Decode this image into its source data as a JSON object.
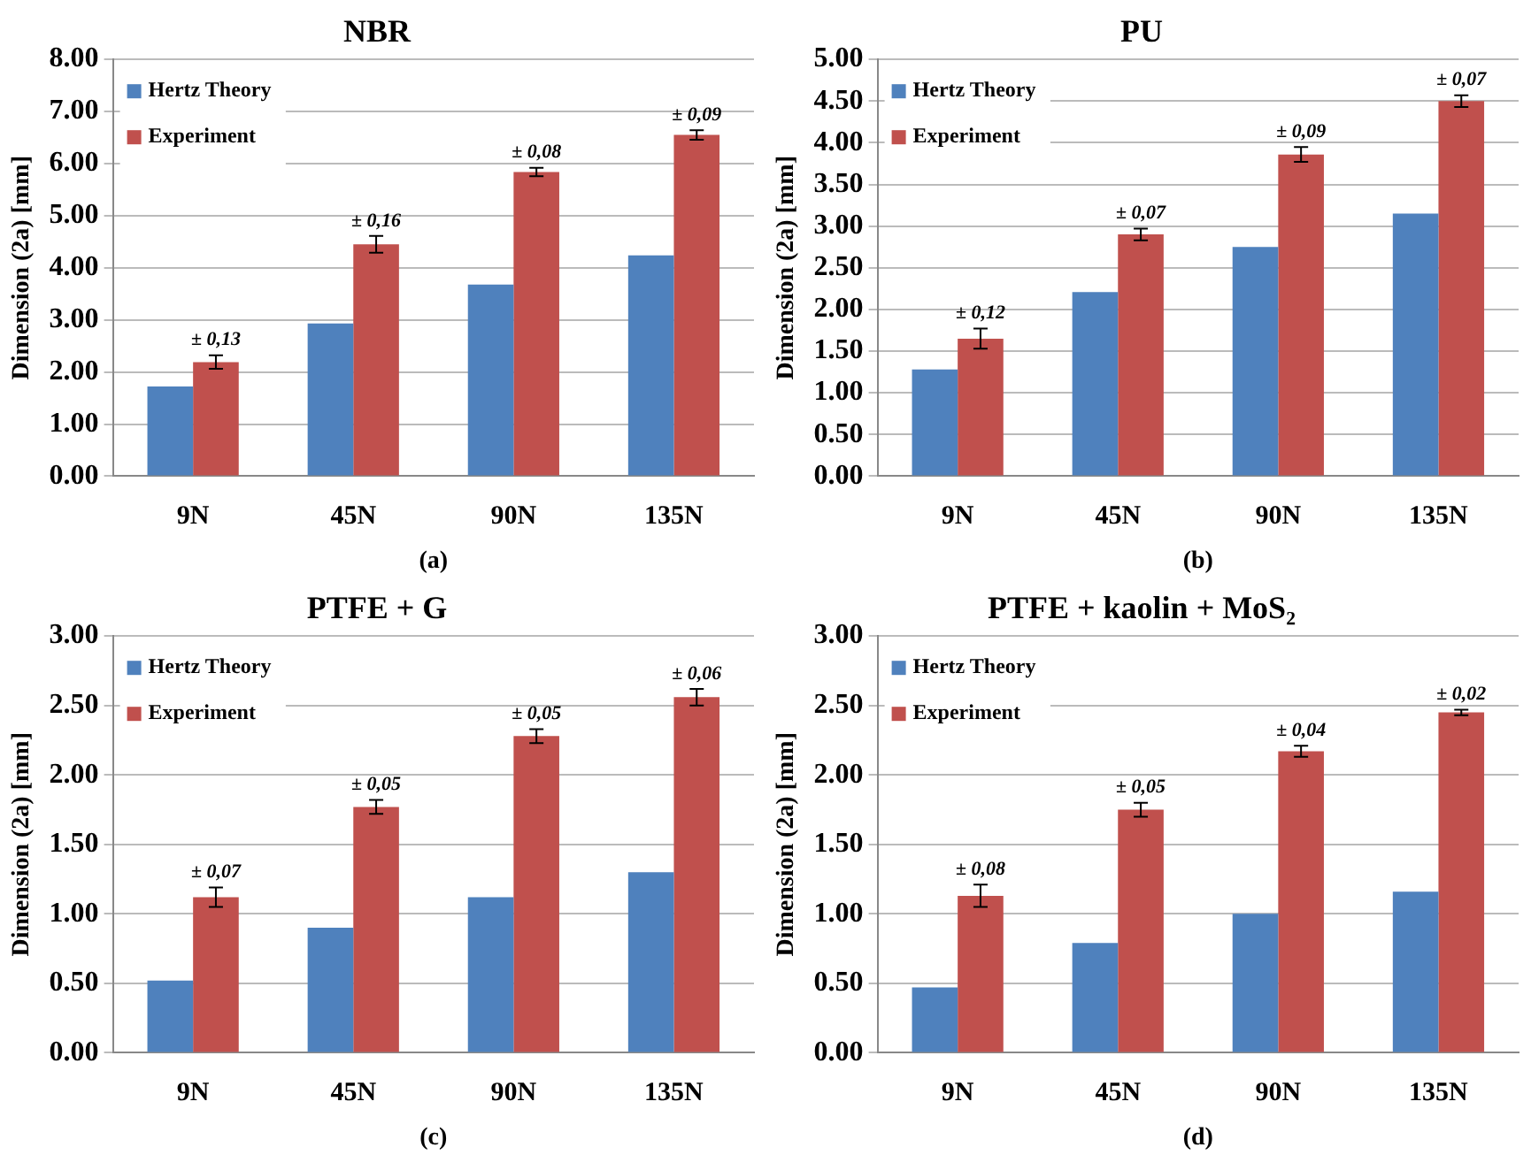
{
  "chart_data": [
    {
      "type": "bar",
      "title": "NBR",
      "xlabel": "(a)",
      "ylabel": "Dimension (2a) [mm]",
      "categories": [
        "9N",
        "45N",
        "90N",
        "135N"
      ],
      "series": [
        {
          "name": "Hertz Theory",
          "color": "#4f81bd",
          "values": [
            1.72,
            2.93,
            3.68,
            4.24
          ]
        },
        {
          "name": "Experiment",
          "color": "#c0504d",
          "values": [
            2.19,
            4.45,
            5.84,
            6.55
          ],
          "errors": [
            0.13,
            0.16,
            0.08,
            0.09
          ]
        }
      ],
      "ylim": [
        0,
        8
      ],
      "yticks": [
        {
          "value": 0,
          "label": "0.00"
        },
        {
          "value": 1,
          "label": "1.00"
        },
        {
          "value": 2,
          "label": "2.00"
        },
        {
          "value": 3,
          "label": "3.00"
        },
        {
          "value": 4,
          "label": "4.00"
        },
        {
          "value": 5,
          "label": "5.00"
        },
        {
          "value": 6,
          "label": "6.00"
        },
        {
          "value": 7,
          "label": "7.00"
        },
        {
          "value": 8,
          "label": "8.00"
        }
      ],
      "grid": "y",
      "legend": "top left",
      "annotations": [
        {
          "text": "± 0,13",
          "x": "9N",
          "y": 2.19
        },
        {
          "text": "± 0,16",
          "x": "45N",
          "y": 4.45
        },
        {
          "text": "± 0,08",
          "x": "90N",
          "y": 5.84
        },
        {
          "text": "± 0,09",
          "x": "135N",
          "y": 6.55
        }
      ]
    },
    {
      "type": "bar",
      "title": "PU",
      "xlabel": "(b)",
      "ylabel": "Dimension (2a) [mm]",
      "categories": [
        "9N",
        "45N",
        "90N",
        "135N"
      ],
      "series": [
        {
          "name": "Hertz Theory",
          "color": "#4f81bd",
          "values": [
            1.28,
            2.21,
            2.75,
            3.15
          ]
        },
        {
          "name": "Experiment",
          "color": "#c0504d",
          "values": [
            1.65,
            2.9,
            3.86,
            4.5
          ],
          "errors": [
            0.12,
            0.07,
            0.09,
            0.07
          ]
        }
      ],
      "ylim": [
        0,
        5
      ],
      "yticks": [
        {
          "value": 0,
          "label": "0.00"
        },
        {
          "value": 0.5,
          "label": "0.50"
        },
        {
          "value": 1,
          "label": "1.00"
        },
        {
          "value": 1.5,
          "label": "1.50"
        },
        {
          "value": 2,
          "label": "2.00"
        },
        {
          "value": 2.5,
          "label": "2.50"
        },
        {
          "value": 3,
          "label": "3.00"
        },
        {
          "value": 3.5,
          "label": "3.50"
        },
        {
          "value": 4,
          "label": "4.00"
        },
        {
          "value": 4.5,
          "label": "4.50"
        },
        {
          "value": 5,
          "label": "5.00"
        }
      ],
      "grid": "y",
      "legend": "top left",
      "annotations": [
        {
          "text": "± 0,12",
          "x": "9N",
          "y": 1.65
        },
        {
          "text": "± 0,07",
          "x": "45N",
          "y": 2.9
        },
        {
          "text": "± 0,09",
          "x": "90N",
          "y": 3.86
        },
        {
          "text": "± 0,07",
          "x": "135N",
          "y": 4.5
        }
      ]
    },
    {
      "type": "bar",
      "title": "PTFE + G",
      "xlabel": "(c)",
      "ylabel": "Dimension (2a) [mm]",
      "categories": [
        "9N",
        "45N",
        "90N",
        "135N"
      ],
      "series": [
        {
          "name": "Hertz Theory",
          "color": "#4f81bd",
          "values": [
            0.52,
            0.9,
            1.12,
            1.3
          ]
        },
        {
          "name": "Experiment",
          "color": "#c0504d",
          "values": [
            1.12,
            1.77,
            2.28,
            2.56
          ],
          "errors": [
            0.07,
            0.05,
            0.05,
            0.06
          ]
        }
      ],
      "ylim": [
        0,
        3
      ],
      "yticks": [
        {
          "value": 0,
          "label": "0.00"
        },
        {
          "value": 0.5,
          "label": "0.50"
        },
        {
          "value": 1,
          "label": "1.00"
        },
        {
          "value": 1.5,
          "label": "1.50"
        },
        {
          "value": 2,
          "label": "2.00"
        },
        {
          "value": 2.5,
          "label": "2.50"
        },
        {
          "value": 3,
          "label": "3.00"
        }
      ],
      "grid": "y",
      "legend": "top left",
      "annotations": [
        {
          "text": "± 0,07",
          "x": "9N",
          "y": 1.12
        },
        {
          "text": "± 0,05",
          "x": "45N",
          "y": 1.77
        },
        {
          "text": "± 0,05",
          "x": "90N",
          "y": 2.28
        },
        {
          "text": "± 0,06",
          "x": "135N",
          "y": 2.56
        }
      ]
    },
    {
      "type": "bar",
      "title": "PTFE + kaolin + MoS₂",
      "xlabel": "(d)",
      "ylabel": "Dimension (2a) [mm]",
      "categories": [
        "9N",
        "45N",
        "90N",
        "135N"
      ],
      "series": [
        {
          "name": "Hertz Theory",
          "color": "#4f81bd",
          "values": [
            0.47,
            0.79,
            1.0,
            1.16
          ]
        },
        {
          "name": "Experiment",
          "color": "#c0504d",
          "values": [
            1.13,
            1.75,
            2.17,
            2.45
          ],
          "errors": [
            0.08,
            0.05,
            0.04,
            0.02
          ]
        }
      ],
      "ylim": [
        0,
        3
      ],
      "yticks": [
        {
          "value": 0,
          "label": "0.00"
        },
        {
          "value": 0.5,
          "label": "0.50"
        },
        {
          "value": 1,
          "label": "1.00"
        },
        {
          "value": 1.5,
          "label": "1.50"
        },
        {
          "value": 2,
          "label": "2.00"
        },
        {
          "value": 2.5,
          "label": "2.50"
        },
        {
          "value": 3,
          "label": "3.00"
        }
      ],
      "grid": "y",
      "legend": "top left",
      "annotations": [
        {
          "text": "± 0,08",
          "x": "9N",
          "y": 1.13
        },
        {
          "text": "± 0,05",
          "x": "45N",
          "y": 1.75
        },
        {
          "text": "± 0,04",
          "x": "90N",
          "y": 2.17
        },
        {
          "text": "± 0,02",
          "x": "135N",
          "y": 2.45
        }
      ]
    }
  ]
}
